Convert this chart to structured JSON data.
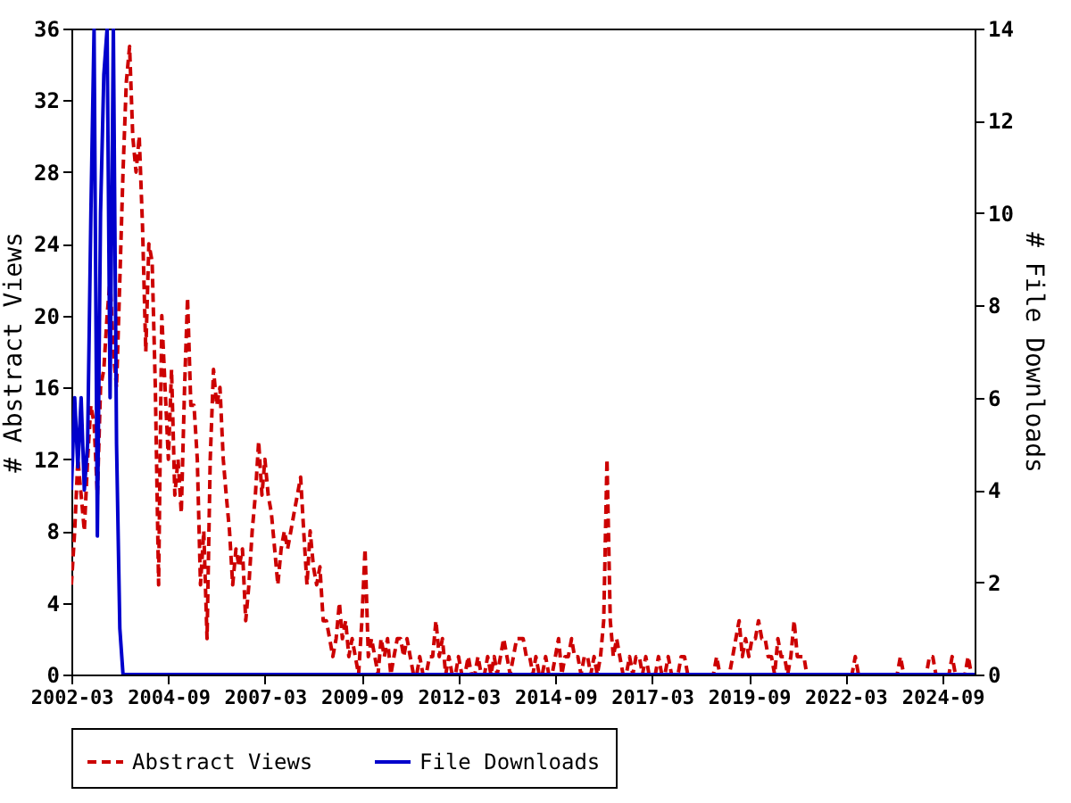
{
  "chart_data": {
    "type": "line",
    "ylabel": "# Abstract Views",
    "y2label": "# File Downloads",
    "x": [
      "2002-03",
      "2002-04",
      "2002-05",
      "2002-06",
      "2002-07",
      "2002-08",
      "2002-09",
      "2002-10",
      "2002-11",
      "2002-12",
      "2003-01",
      "2003-02",
      "2003-03",
      "2003-04",
      "2003-05",
      "2003-06",
      "2003-07",
      "2003-08",
      "2003-09",
      "2003-10",
      "2003-11",
      "2003-12",
      "2004-01",
      "2004-02",
      "2004-03",
      "2004-04",
      "2004-05",
      "2004-06",
      "2004-07",
      "2004-08",
      "2004-09",
      "2004-10",
      "2004-11",
      "2004-12",
      "2005-01",
      "2005-02",
      "2005-03",
      "2005-04",
      "2005-05",
      "2005-06",
      "2005-07",
      "2005-08",
      "2005-09",
      "2005-10",
      "2005-11",
      "2005-12",
      "2006-01",
      "2006-02",
      "2006-03",
      "2006-04",
      "2006-05",
      "2006-06",
      "2006-07",
      "2006-08",
      "2006-09",
      "2006-10",
      "2006-11",
      "2006-12",
      "2007-01",
      "2007-02",
      "2007-03",
      "2007-04",
      "2007-05",
      "2007-06",
      "2007-07",
      "2007-08",
      "2007-09",
      "2007-10",
      "2007-11",
      "2007-12",
      "2008-01",
      "2008-02",
      "2008-03",
      "2008-04",
      "2008-05",
      "2008-06",
      "2008-07",
      "2008-08",
      "2008-09",
      "2008-10",
      "2008-11",
      "2008-12",
      "2009-01",
      "2009-02",
      "2009-03",
      "2009-04",
      "2009-05",
      "2009-06",
      "2009-07",
      "2009-08",
      "2009-09",
      "2009-10",
      "2009-11",
      "2009-12",
      "2010-01",
      "2010-02",
      "2010-03",
      "2010-04",
      "2010-05",
      "2010-06",
      "2010-07",
      "2010-08",
      "2010-09",
      "2010-10",
      "2010-11",
      "2010-12",
      "2011-01",
      "2011-02",
      "2011-03",
      "2011-04",
      "2011-05",
      "2011-06",
      "2011-07",
      "2011-08",
      "2011-09",
      "2011-10",
      "2011-11",
      "2011-12",
      "2012-01",
      "2012-02",
      "2012-03",
      "2012-04",
      "2012-05",
      "2012-06",
      "2012-07",
      "2012-08",
      "2012-09",
      "2012-10",
      "2012-11",
      "2012-12",
      "2013-01",
      "2013-02",
      "2013-03",
      "2013-04",
      "2013-05",
      "2013-06",
      "2013-07",
      "2013-08",
      "2013-09",
      "2013-10",
      "2013-11",
      "2013-12",
      "2014-01",
      "2014-02",
      "2014-03",
      "2014-04",
      "2014-05",
      "2014-06",
      "2014-07",
      "2014-08",
      "2014-09",
      "2014-10",
      "2014-11",
      "2014-12",
      "2015-01",
      "2015-02",
      "2015-03",
      "2015-04",
      "2015-05",
      "2015-06",
      "2015-07",
      "2015-08",
      "2015-09",
      "2015-10",
      "2015-11",
      "2015-12",
      "2016-01",
      "2016-02",
      "2016-03",
      "2016-04",
      "2016-05",
      "2016-06",
      "2016-07",
      "2016-08",
      "2016-09",
      "2016-10",
      "2016-11",
      "2016-12",
      "2017-01",
      "2017-02",
      "2017-03",
      "2017-04",
      "2017-05",
      "2017-06",
      "2017-07",
      "2017-08",
      "2017-09",
      "2017-10",
      "2017-11",
      "2017-12",
      "2018-01",
      "2018-02",
      "2018-03",
      "2018-04",
      "2018-05",
      "2018-06",
      "2018-07",
      "2018-08",
      "2018-09",
      "2018-10",
      "2018-11",
      "2018-12",
      "2019-01",
      "2019-02",
      "2019-03",
      "2019-04",
      "2019-05",
      "2019-06",
      "2019-07",
      "2019-08",
      "2019-09",
      "2019-10",
      "2019-11",
      "2019-12",
      "2020-01",
      "2020-02",
      "2020-03",
      "2020-04",
      "2020-05",
      "2020-06",
      "2020-07",
      "2020-08",
      "2020-09",
      "2020-10",
      "2020-11",
      "2020-12",
      "2021-01",
      "2021-02",
      "2021-03",
      "2021-04",
      "2021-05",
      "2021-06",
      "2021-07",
      "2021-08",
      "2021-09",
      "2021-10",
      "2021-11",
      "2021-12",
      "2022-01",
      "2022-02",
      "2022-03",
      "2022-04",
      "2022-05",
      "2022-06",
      "2022-07",
      "2022-08",
      "2022-09",
      "2022-10",
      "2022-11",
      "2022-12",
      "2023-01",
      "2023-02",
      "2023-03",
      "2023-04",
      "2023-05",
      "2023-06",
      "2023-07",
      "2023-08",
      "2023-09",
      "2023-10",
      "2023-11",
      "2023-12",
      "2024-01",
      "2024-02",
      "2024-03",
      "2024-04",
      "2024-05",
      "2024-06",
      "2024-07",
      "2024-08",
      "2024-09",
      "2024-10",
      "2024-11",
      "2024-12",
      "2025-01",
      "2025-02",
      "2025-03",
      "2025-04",
      "2025-05",
      "2025-06",
      "2025-07"
    ],
    "series": [
      {
        "name": "Abstract Views",
        "color": "#cc0000",
        "line_style": "dashed",
        "values": [
          5,
          8,
          12,
          10,
          8,
          12,
          15,
          14,
          10,
          16,
          17,
          20,
          22,
          18,
          16,
          22,
          28,
          33,
          35,
          30,
          28,
          30,
          25,
          18,
          24,
          23,
          16,
          5,
          20,
          16,
          12,
          17,
          10,
          12,
          9,
          16,
          21,
          15,
          15,
          12,
          5,
          8,
          2,
          12,
          17,
          15,
          16,
          12,
          10,
          8,
          5,
          7,
          6,
          7,
          3,
          5,
          8,
          10,
          13,
          10,
          12,
          10,
          9,
          7,
          5,
          7,
          8,
          7,
          8,
          9,
          10,
          11,
          8,
          5,
          8,
          6,
          5,
          6,
          3,
          3,
          2,
          1,
          2,
          4,
          2,
          3,
          1,
          2,
          1,
          0,
          3,
          7,
          1,
          2,
          1,
          0,
          2,
          1,
          2,
          0,
          1,
          2,
          2,
          1,
          2,
          1,
          0,
          0,
          1,
          0,
          0,
          1,
          1,
          3,
          1,
          2,
          0,
          1,
          0,
          0,
          1,
          0,
          0,
          1,
          0,
          0,
          1,
          0,
          0,
          1,
          0,
          1,
          0,
          1,
          2,
          1,
          0,
          1,
          2,
          2,
          2,
          1,
          1,
          0,
          1,
          0,
          0,
          1,
          0,
          0,
          1,
          2,
          0,
          1,
          1,
          2,
          1,
          1,
          0,
          1,
          1,
          0,
          1,
          0,
          1,
          3,
          12,
          3,
          1,
          2,
          1,
          0,
          0,
          1,
          0,
          1,
          1,
          0,
          1,
          0,
          0,
          0,
          1,
          0,
          0,
          1,
          0,
          0,
          0,
          1,
          1,
          0,
          0,
          0,
          0,
          0,
          0,
          0,
          0,
          0,
          1,
          0,
          0,
          0,
          0,
          1,
          2,
          3,
          1,
          2,
          1,
          2,
          2,
          3,
          2,
          2,
          1,
          1,
          0,
          2,
          1,
          1,
          0,
          1,
          3,
          1,
          1,
          1,
          0,
          0,
          0,
          0,
          0,
          0,
          0,
          0,
          0,
          0,
          0,
          0,
          0,
          0,
          0,
          1,
          0,
          0,
          0,
          0,
          0,
          0,
          0,
          0,
          0,
          0,
          0,
          0,
          0,
          1,
          0,
          0,
          0,
          0,
          0,
          0,
          0,
          0,
          1,
          1,
          0,
          0,
          0,
          0,
          0,
          1,
          0,
          0,
          0,
          0,
          1,
          0,
          0
        ]
      },
      {
        "name": "File Downloads",
        "color": "#0000cc",
        "line_style": "solid",
        "axis": "y2",
        "x": [
          "2002-03",
          "2002-04",
          "2002-05",
          "2002-06",
          "2002-07",
          "2002-08",
          "2002-09",
          "2002-10",
          "2002-11",
          "2002-12",
          "2003-01",
          "2003-02",
          "2003-03",
          "2003-04",
          "2003-05",
          "2003-06",
          "2003-07",
          "2025-07"
        ],
        "values": [
          4,
          6,
          4.5,
          6,
          4,
          5,
          10,
          14,
          3,
          10,
          13,
          14,
          6,
          14,
          5,
          1,
          0,
          0
        ]
      }
    ],
    "xlim": [
      "2002-03",
      "2025-07"
    ],
    "xticks": [
      "2002-03",
      "2004-09",
      "2007-03",
      "2009-09",
      "2012-03",
      "2014-09",
      "2017-03",
      "2019-09",
      "2022-03",
      "2024-09"
    ],
    "ylim": [
      0,
      36
    ],
    "yticks": [
      0,
      4,
      8,
      12,
      16,
      20,
      24,
      28,
      32,
      36
    ],
    "y2lim": [
      0,
      14
    ],
    "y2ticks": [
      0,
      2,
      4,
      6,
      8,
      10,
      12,
      14
    ],
    "grid": false,
    "legend": "bottom"
  }
}
